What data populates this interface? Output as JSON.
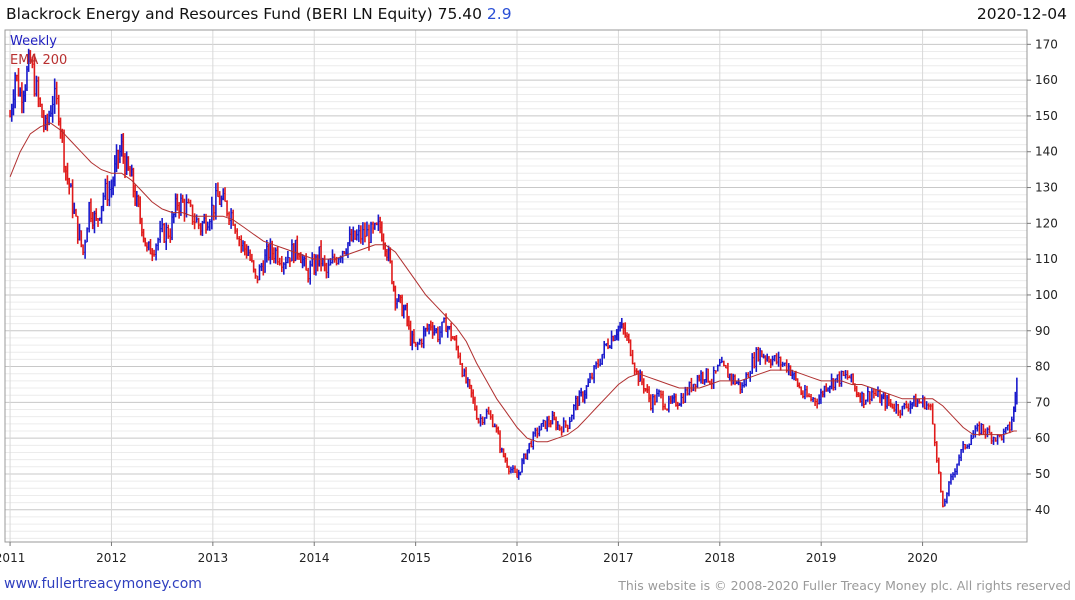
{
  "header": {
    "title": "Blackrock Energy and Resources Fund (BERI LN Equity) 75.40",
    "change": "2.9",
    "date": "2020-12-04"
  },
  "legend": {
    "weekly": "Weekly",
    "ema": "EMA 200"
  },
  "footer": {
    "site": "www.fullertreacymoney.com",
    "copyright": "This website is © 2008-2020 Fuller Treacy Money plc. All rights reserved"
  },
  "colors": {
    "up": "#1a1acc",
    "down": "#e01b1b",
    "ema": "#b03030",
    "grid": "#d9d9d9"
  },
  "chart_data": {
    "type": "line",
    "frequency": "weekly",
    "grid": true,
    "y_axis_side": "right",
    "ylim": [
      31,
      174
    ],
    "yticks": [
      40,
      50,
      60,
      70,
      80,
      90,
      100,
      110,
      120,
      130,
      140,
      150,
      160,
      170
    ],
    "xlim": [
      2010.95,
      2021.03
    ],
    "xticks": [
      2011,
      2012,
      2013,
      2014,
      2015,
      2016,
      2017,
      2018,
      2019,
      2020
    ],
    "last_price": 75.4,
    "series": [
      {
        "name": "Weekly",
        "points": [
          [
            2011.0,
            150
          ],
          [
            2011.05,
            162
          ],
          [
            2011.1,
            156
          ],
          [
            2011.15,
            160
          ],
          [
            2011.2,
            165
          ],
          [
            2011.28,
            154
          ],
          [
            2011.35,
            146
          ],
          [
            2011.42,
            155
          ],
          [
            2011.48,
            152
          ],
          [
            2011.55,
            135
          ],
          [
            2011.6,
            128
          ],
          [
            2011.65,
            120
          ],
          [
            2011.72,
            112
          ],
          [
            2011.78,
            125
          ],
          [
            2011.85,
            120
          ],
          [
            2011.92,
            128
          ],
          [
            2012.0,
            130
          ],
          [
            2012.05,
            137
          ],
          [
            2012.1,
            141
          ],
          [
            2012.15,
            135
          ],
          [
            2012.2,
            132
          ],
          [
            2012.25,
            125
          ],
          [
            2012.3,
            120
          ],
          [
            2012.35,
            112
          ],
          [
            2012.42,
            114
          ],
          [
            2012.5,
            117
          ],
          [
            2012.58,
            118
          ],
          [
            2012.65,
            126
          ],
          [
            2012.72,
            125
          ],
          [
            2012.8,
            122
          ],
          [
            2012.88,
            119
          ],
          [
            2012.95,
            122
          ],
          [
            2013.05,
            127
          ],
          [
            2013.12,
            125
          ],
          [
            2013.2,
            122
          ],
          [
            2013.28,
            114
          ],
          [
            2013.35,
            112
          ],
          [
            2013.42,
            104
          ],
          [
            2013.48,
            108
          ],
          [
            2013.55,
            112
          ],
          [
            2013.62,
            112
          ],
          [
            2013.7,
            110
          ],
          [
            2013.78,
            112
          ],
          [
            2013.85,
            113
          ],
          [
            2013.92,
            106
          ],
          [
            2014.0,
            108
          ],
          [
            2014.05,
            111
          ],
          [
            2014.12,
            106
          ],
          [
            2014.2,
            110
          ],
          [
            2014.28,
            113
          ],
          [
            2014.35,
            115
          ],
          [
            2014.42,
            116
          ],
          [
            2014.5,
            117
          ],
          [
            2014.58,
            117
          ],
          [
            2014.65,
            119
          ],
          [
            2014.7,
            115
          ],
          [
            2014.75,
            108
          ],
          [
            2014.8,
            100
          ],
          [
            2014.85,
            97
          ],
          [
            2014.9,
            95
          ],
          [
            2014.95,
            88
          ],
          [
            2015.0,
            85
          ],
          [
            2015.08,
            89
          ],
          [
            2015.15,
            92
          ],
          [
            2015.22,
            89
          ],
          [
            2015.3,
            92
          ],
          [
            2015.35,
            89
          ],
          [
            2015.42,
            84
          ],
          [
            2015.48,
            77
          ],
          [
            2015.55,
            72
          ],
          [
            2015.62,
            65
          ],
          [
            2015.7,
            67
          ],
          [
            2015.78,
            64
          ],
          [
            2015.85,
            56
          ],
          [
            2015.92,
            52
          ],
          [
            2016.0,
            49
          ],
          [
            2016.05,
            53
          ],
          [
            2016.12,
            58
          ],
          [
            2016.2,
            62
          ],
          [
            2016.28,
            64
          ],
          [
            2016.35,
            65
          ],
          [
            2016.42,
            63
          ],
          [
            2016.5,
            64
          ],
          [
            2016.58,
            70
          ],
          [
            2016.65,
            72
          ],
          [
            2016.72,
            76
          ],
          [
            2016.8,
            81
          ],
          [
            2016.88,
            86
          ],
          [
            2016.95,
            89
          ],
          [
            2017.0,
            91
          ],
          [
            2017.05,
            90
          ],
          [
            2017.12,
            85
          ],
          [
            2017.18,
            78
          ],
          [
            2017.25,
            75
          ],
          [
            2017.32,
            70
          ],
          [
            2017.4,
            72
          ],
          [
            2017.48,
            69
          ],
          [
            2017.55,
            70
          ],
          [
            2017.62,
            71
          ],
          [
            2017.7,
            74
          ],
          [
            2017.78,
            77
          ],
          [
            2017.85,
            78
          ],
          [
            2017.92,
            76
          ],
          [
            2018.0,
            80
          ],
          [
            2018.08,
            78
          ],
          [
            2018.15,
            76
          ],
          [
            2018.22,
            74
          ],
          [
            2018.3,
            80
          ],
          [
            2018.38,
            84
          ],
          [
            2018.45,
            83
          ],
          [
            2018.52,
            82
          ],
          [
            2018.6,
            81
          ],
          [
            2018.68,
            80
          ],
          [
            2018.75,
            76
          ],
          [
            2018.82,
            72
          ],
          [
            2018.9,
            71
          ],
          [
            2018.98,
            71
          ],
          [
            2019.05,
            75
          ],
          [
            2019.12,
            76
          ],
          [
            2019.2,
            77
          ],
          [
            2019.28,
            77
          ],
          [
            2019.35,
            73
          ],
          [
            2019.42,
            71
          ],
          [
            2019.5,
            73
          ],
          [
            2019.58,
            71
          ],
          [
            2019.65,
            70
          ],
          [
            2019.72,
            69
          ],
          [
            2019.8,
            68
          ],
          [
            2019.88,
            70
          ],
          [
            2019.95,
            70
          ],
          [
            2020.02,
            70
          ],
          [
            2020.08,
            68
          ],
          [
            2020.12,
            60
          ],
          [
            2020.16,
            50
          ],
          [
            2020.2,
            40
          ],
          [
            2020.24,
            45
          ],
          [
            2020.3,
            50
          ],
          [
            2020.36,
            55
          ],
          [
            2020.42,
            58
          ],
          [
            2020.5,
            61
          ],
          [
            2020.58,
            63
          ],
          [
            2020.66,
            61
          ],
          [
            2020.74,
            60
          ],
          [
            2020.8,
            61
          ],
          [
            2020.86,
            63
          ],
          [
            2020.9,
            68
          ],
          [
            2020.93,
            75.4
          ]
        ]
      },
      {
        "name": "EMA 200",
        "points": [
          [
            2011.0,
            133
          ],
          [
            2011.1,
            140
          ],
          [
            2011.2,
            145
          ],
          [
            2011.3,
            147
          ],
          [
            2011.4,
            148
          ],
          [
            2011.5,
            146
          ],
          [
            2011.6,
            143
          ],
          [
            2011.7,
            140
          ],
          [
            2011.8,
            137
          ],
          [
            2011.9,
            135
          ],
          [
            2012.0,
            134
          ],
          [
            2012.1,
            134
          ],
          [
            2012.2,
            132
          ],
          [
            2012.3,
            129
          ],
          [
            2012.4,
            126
          ],
          [
            2012.5,
            124
          ],
          [
            2012.6,
            123
          ],
          [
            2012.7,
            123
          ],
          [
            2012.8,
            122
          ],
          [
            2012.9,
            122
          ],
          [
            2013.0,
            122
          ],
          [
            2013.1,
            122
          ],
          [
            2013.2,
            121
          ],
          [
            2013.3,
            119
          ],
          [
            2013.4,
            117
          ],
          [
            2013.5,
            115
          ],
          [
            2013.6,
            114
          ],
          [
            2013.7,
            113
          ],
          [
            2013.8,
            112
          ],
          [
            2013.9,
            111
          ],
          [
            2014.0,
            110
          ],
          [
            2014.1,
            110
          ],
          [
            2014.2,
            110
          ],
          [
            2014.3,
            111
          ],
          [
            2014.4,
            112
          ],
          [
            2014.5,
            113
          ],
          [
            2014.6,
            114
          ],
          [
            2014.7,
            114
          ],
          [
            2014.8,
            112
          ],
          [
            2014.9,
            108
          ],
          [
            2015.0,
            104
          ],
          [
            2015.1,
            100
          ],
          [
            2015.2,
            97
          ],
          [
            2015.3,
            94
          ],
          [
            2015.4,
            91
          ],
          [
            2015.5,
            87
          ],
          [
            2015.6,
            81
          ],
          [
            2015.7,
            76
          ],
          [
            2015.8,
            71
          ],
          [
            2015.9,
            67
          ],
          [
            2016.0,
            63
          ],
          [
            2016.1,
            60
          ],
          [
            2016.2,
            59
          ],
          [
            2016.3,
            59
          ],
          [
            2016.4,
            60
          ],
          [
            2016.5,
            61
          ],
          [
            2016.6,
            63
          ],
          [
            2016.7,
            66
          ],
          [
            2016.8,
            69
          ],
          [
            2016.9,
            72
          ],
          [
            2017.0,
            75
          ],
          [
            2017.1,
            77
          ],
          [
            2017.2,
            78
          ],
          [
            2017.3,
            77
          ],
          [
            2017.4,
            76
          ],
          [
            2017.5,
            75
          ],
          [
            2017.6,
            74
          ],
          [
            2017.7,
            74
          ],
          [
            2017.8,
            74
          ],
          [
            2017.9,
            75
          ],
          [
            2018.0,
            76
          ],
          [
            2018.1,
            76
          ],
          [
            2018.2,
            76
          ],
          [
            2018.3,
            77
          ],
          [
            2018.4,
            78
          ],
          [
            2018.5,
            79
          ],
          [
            2018.6,
            79
          ],
          [
            2018.7,
            79
          ],
          [
            2018.8,
            78
          ],
          [
            2018.9,
            77
          ],
          [
            2019.0,
            76
          ],
          [
            2019.1,
            76
          ],
          [
            2019.2,
            76
          ],
          [
            2019.3,
            75
          ],
          [
            2019.4,
            75
          ],
          [
            2019.5,
            74
          ],
          [
            2019.6,
            73
          ],
          [
            2019.7,
            72
          ],
          [
            2019.8,
            71
          ],
          [
            2019.9,
            71
          ],
          [
            2020.0,
            71
          ],
          [
            2020.1,
            71
          ],
          [
            2020.2,
            69
          ],
          [
            2020.3,
            66
          ],
          [
            2020.4,
            63
          ],
          [
            2020.5,
            61
          ],
          [
            2020.6,
            61
          ],
          [
            2020.7,
            61
          ],
          [
            2020.8,
            61
          ],
          [
            2020.9,
            62
          ],
          [
            2020.93,
            62
          ]
        ]
      }
    ]
  }
}
